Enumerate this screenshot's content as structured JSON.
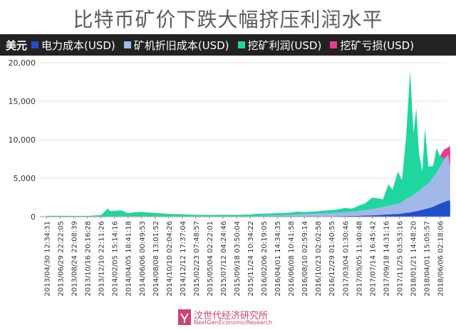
{
  "chart_data": {
    "type": "area",
    "title": "比特币矿价下跌大幅挤压利润水平",
    "unit_label": "美元",
    "ylim": [
      0,
      20000
    ],
    "yticks": [
      0,
      5000,
      10000,
      15000,
      20000
    ],
    "ytick_labels": [
      "0",
      "5,000",
      "10,000",
      "15,000",
      "20,000"
    ],
    "x_tick_labels": [
      "2013/04/30 12:34:31",
      "2013/06/29 22:22:05",
      "2013/08/24 22:08:39",
      "2013/10/16 20:16:28",
      "2013/12/10 22:11:26",
      "2014/02/05 15:14:16",
      "2014/04/05 18:41:18",
      "2014/06/06 00:49:53",
      "2014/08/08 13:01:52",
      "2014/10/10 02:04:26",
      "2014/12/12 17:37:04",
      "2015/02/23 07:48:57",
      "2015/05/04 02:22:01",
      "2015/07/12 04:24:46",
      "2015/09/18 03:50:04",
      "2015/11/24 10:34:22",
      "2016/02/06 20:19:05",
      "2016/04/01 14:34:35",
      "2016/06/08 10:41:58",
      "2016/08/10 02:59:14",
      "2016/10/23 02:02:58",
      "2016/12/29 01:40:55",
      "2017/03/04 01:30:46",
      "2017/05/05 11:40:48",
      "2017/07/14 16:45:42",
      "2017/09/18 14:31:16",
      "2017/11/25 03:53:16",
      "2018/01/21 14:48:20",
      "2018/04/01 15:05:57",
      "2018/06/06 02:18:06"
    ],
    "series": [
      {
        "name": "电力成本(USD)",
        "color": "#1f4fcc"
      },
      {
        "name": "矿机折旧成本(USD)",
        "color": "#a3b8e8"
      },
      {
        "name": "挖矿利润(USD)",
        "color": "#20d6a0"
      },
      {
        "name": "挖矿亏损(USD)",
        "color": "#ea3b93"
      }
    ],
    "points": [
      {
        "x": 0,
        "power": 0,
        "depr": 20,
        "profit": 100,
        "loss": 0
      },
      {
        "x": 2,
        "power": 0,
        "depr": 20,
        "profit": 80,
        "loss": 0
      },
      {
        "x": 3,
        "power": 0,
        "depr": 30,
        "profit": 70,
        "loss": 0
      },
      {
        "x": 4,
        "power": 0,
        "depr": 40,
        "profit": 160,
        "loss": 0
      },
      {
        "x": 4.5,
        "power": 0,
        "depr": 60,
        "profit": 1000,
        "loss": 0
      },
      {
        "x": 4.7,
        "power": 0,
        "depr": 60,
        "profit": 650,
        "loss": 0
      },
      {
        "x": 5,
        "power": 0,
        "depr": 60,
        "profit": 700,
        "loss": 0
      },
      {
        "x": 5.5,
        "power": 0,
        "depr": 60,
        "profit": 750,
        "loss": 0
      },
      {
        "x": 6,
        "power": 0,
        "depr": 60,
        "profit": 400,
        "loss": 0
      },
      {
        "x": 6.5,
        "power": 0,
        "depr": 60,
        "profit": 520,
        "loss": 0
      },
      {
        "x": 7,
        "power": 0,
        "depr": 60,
        "profit": 560,
        "loss": 0
      },
      {
        "x": 7.5,
        "power": 0,
        "depr": 60,
        "profit": 480,
        "loss": 0
      },
      {
        "x": 8,
        "power": 0,
        "depr": 60,
        "profit": 420,
        "loss": 0
      },
      {
        "x": 9,
        "power": 0,
        "depr": 60,
        "profit": 300,
        "loss": 0
      },
      {
        "x": 10,
        "power": 0,
        "depr": 60,
        "profit": 250,
        "loss": 0
      },
      {
        "x": 11,
        "power": 0,
        "depr": 60,
        "profit": 180,
        "loss": 0
      },
      {
        "x": 12,
        "power": 0,
        "depr": 60,
        "profit": 170,
        "loss": 0
      },
      {
        "x": 13,
        "power": 0,
        "depr": 60,
        "profit": 180,
        "loss": 0
      },
      {
        "x": 14,
        "power": 0,
        "depr": 60,
        "profit": 170,
        "loss": 0
      },
      {
        "x": 15,
        "power": 0,
        "depr": 60,
        "profit": 220,
        "loss": 0
      },
      {
        "x": 15.5,
        "power": 0,
        "depr": 80,
        "profit": 300,
        "loss": 0
      },
      {
        "x": 16,
        "power": 20,
        "depr": 120,
        "profit": 260,
        "loss": 0
      },
      {
        "x": 17,
        "power": 20,
        "depr": 150,
        "profit": 280,
        "loss": 0
      },
      {
        "x": 18,
        "power": 30,
        "depr": 200,
        "profit": 300,
        "loss": 0
      },
      {
        "x": 18.5,
        "power": 30,
        "depr": 250,
        "profit": 380,
        "loss": 0
      },
      {
        "x": 19,
        "power": 40,
        "depr": 300,
        "profit": 250,
        "loss": 0
      },
      {
        "x": 20,
        "power": 50,
        "depr": 350,
        "profit": 300,
        "loss": 0
      },
      {
        "x": 21,
        "power": 60,
        "depr": 400,
        "profit": 400,
        "loss": 0
      },
      {
        "x": 21.5,
        "power": 80,
        "depr": 420,
        "profit": 450,
        "loss": 0
      },
      {
        "x": 22,
        "power": 80,
        "depr": 500,
        "profit": 550,
        "loss": 0
      },
      {
        "x": 22.5,
        "power": 100,
        "depr": 550,
        "profit": 400,
        "loss": 0
      },
      {
        "x": 23,
        "power": 120,
        "depr": 600,
        "profit": 700,
        "loss": 0
      },
      {
        "x": 23.5,
        "power": 150,
        "depr": 700,
        "profit": 900,
        "loss": 0
      },
      {
        "x": 24,
        "power": 180,
        "depr": 800,
        "profit": 1500,
        "loss": 0
      },
      {
        "x": 24.4,
        "power": 200,
        "depr": 900,
        "profit": 1300,
        "loss": 0
      },
      {
        "x": 24.8,
        "power": 250,
        "depr": 1000,
        "profit": 1000,
        "loss": 0
      },
      {
        "x": 25.2,
        "power": 300,
        "depr": 1100,
        "profit": 2800,
        "loss": 0
      },
      {
        "x": 25.5,
        "power": 320,
        "depr": 1200,
        "profit": 2000,
        "loss": 0
      },
      {
        "x": 25.9,
        "power": 350,
        "depr": 1300,
        "profit": 4200,
        "loss": 0
      },
      {
        "x": 26.2,
        "power": 420,
        "depr": 1500,
        "profit": 2800,
        "loss": 0
      },
      {
        "x": 26.5,
        "power": 500,
        "depr": 1800,
        "profit": 8000,
        "loss": 0
      },
      {
        "x": 26.8,
        "power": 550,
        "depr": 2000,
        "profit": 16400,
        "loss": 0
      },
      {
        "x": 27.05,
        "power": 650,
        "depr": 2200,
        "profit": 8000,
        "loss": 0
      },
      {
        "x": 27.25,
        "power": 700,
        "depr": 2400,
        "profit": 11000,
        "loss": 0
      },
      {
        "x": 27.45,
        "power": 800,
        "depr": 2500,
        "profit": 5000,
        "loss": 0
      },
      {
        "x": 27.7,
        "power": 900,
        "depr": 2800,
        "profit": 2200,
        "loss": 0
      },
      {
        "x": 27.9,
        "power": 1000,
        "depr": 3000,
        "profit": 7500,
        "loss": 0
      },
      {
        "x": 28.15,
        "power": 1100,
        "depr": 3200,
        "profit": 2200,
        "loss": 0
      },
      {
        "x": 28.5,
        "power": 1300,
        "depr": 3800,
        "profit": 1500,
        "loss": 0
      },
      {
        "x": 28.75,
        "power": 1500,
        "depr": 4200,
        "profit": 3200,
        "loss": 0
      },
      {
        "x": 29.0,
        "power": 1700,
        "depr": 4800,
        "profit": 1400,
        "loss": 0
      },
      {
        "x": 29.3,
        "power": 1900,
        "depr": 5500,
        "profit": 100,
        "loss": 1200
      },
      {
        "x": 29.6,
        "power": 2100,
        "depr": 5900,
        "profit": 0,
        "loss": 1000
      },
      {
        "x": 29.75,
        "power": 2100,
        "depr": 4300,
        "profit": 0,
        "loss": 2800
      }
    ]
  },
  "watermark": {
    "name": "汶世代经济研究所",
    "sub": "NextGenEconomicResearch"
  }
}
